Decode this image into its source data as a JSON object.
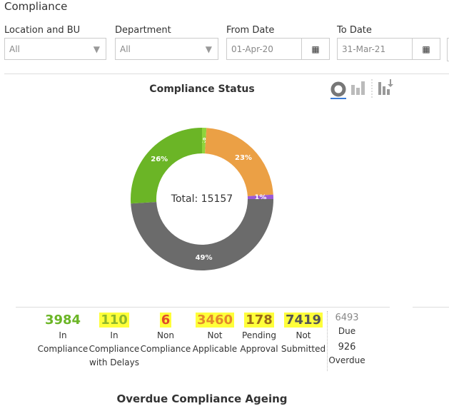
{
  "header": {
    "title": "Compliance"
  },
  "filters": [
    {
      "label": "Location and BU",
      "value": "All"
    },
    {
      "label": "Department",
      "value": "All"
    },
    {
      "label": "From Date",
      "value": "01-Apr-20"
    },
    {
      "label": "To Date",
      "value": "31-Mar-21"
    }
  ],
  "status_chart": {
    "type": "donut",
    "title": "Compliance Status",
    "center_label": "Total: 15157",
    "values": [
      1,
      23,
      1,
      49,
      26
    ],
    "value_labels": [
      "1%",
      "23%",
      "1%",
      "49%",
      "26%"
    ],
    "colors": [
      "#8fd43c",
      "#eba045",
      "#9b5ad6",
      "#6b6b6b",
      "#6bb526"
    ]
  },
  "stats": [
    {
      "value": "3984",
      "label": "In Compliance",
      "color": "#6bb526"
    },
    {
      "value": "110",
      "label": "In Compliance with Delays",
      "color": "#8fb82a"
    },
    {
      "value": "6",
      "label": "Non Compliance",
      "color": "#e04a2a"
    },
    {
      "value": "3460",
      "label": "Not Applicable",
      "color": "#e3892b"
    },
    {
      "value": "178",
      "label": "Pending Approval",
      "color": "#9a6a1a"
    },
    {
      "value": "7419",
      "label": "Not Submitted",
      "color": "#555555"
    }
  ],
  "due": {
    "value": "6493",
    "label": "Due"
  },
  "overdue": {
    "value": "926",
    "label": "Overdue"
  },
  "section_title": "Overdue Compliance Ageing"
}
